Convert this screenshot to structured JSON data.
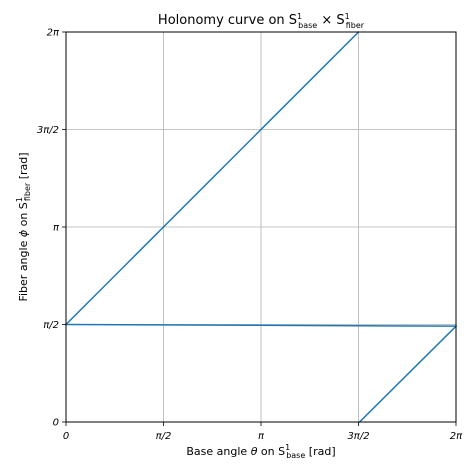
{
  "chart_data": {
    "type": "line",
    "title": {
      "prefix": "Holonomy curve on ",
      "s1": "S",
      "s1_sup": "1",
      "s1_sub": "base",
      "times": " × ",
      "s2": "S",
      "s2_sup": "1",
      "s2_sub": "fiber"
    },
    "xlabel": {
      "prefix": "Base angle ",
      "var": "θ",
      "mid": " on ",
      "s": "S",
      "sup": "1",
      "sub": "base",
      "suffix": " [rad]"
    },
    "ylabel": {
      "prefix": "Fiber angle ",
      "var": "ϕ",
      "mid": " on ",
      "s": "S",
      "sup": "1",
      "sub": "fiber",
      "suffix": " [rad]"
    },
    "xlim": [
      0,
      6.283185
    ],
    "ylim": [
      0,
      6.283185
    ],
    "grid": true,
    "xticks": [
      {
        "value": 0,
        "label": "0"
      },
      {
        "value": 1.570796,
        "label": "π/2"
      },
      {
        "value": 3.141593,
        "label": "π"
      },
      {
        "value": 4.712389,
        "label": "3π/2"
      },
      {
        "value": 6.283185,
        "label": "2π"
      }
    ],
    "yticks": [
      {
        "value": 0,
        "label": "0"
      },
      {
        "value": 1.570796,
        "label": "π/2"
      },
      {
        "value": 3.141593,
        "label": "π"
      },
      {
        "value": 4.712389,
        "label": "3π/2"
      },
      {
        "value": 6.283185,
        "label": "2π"
      }
    ],
    "series": [
      {
        "color": "#1f77b4",
        "segments": [
          [
            [
              0,
              1.570796
            ],
            [
              4.712389,
              6.283185
            ]
          ],
          [
            [
              0,
              1.570796
            ],
            [
              6.283185,
              1.544
            ]
          ],
          [
            [
              6.283185,
              1.544
            ],
            [
              4.73,
              0
            ]
          ]
        ]
      }
    ]
  }
}
